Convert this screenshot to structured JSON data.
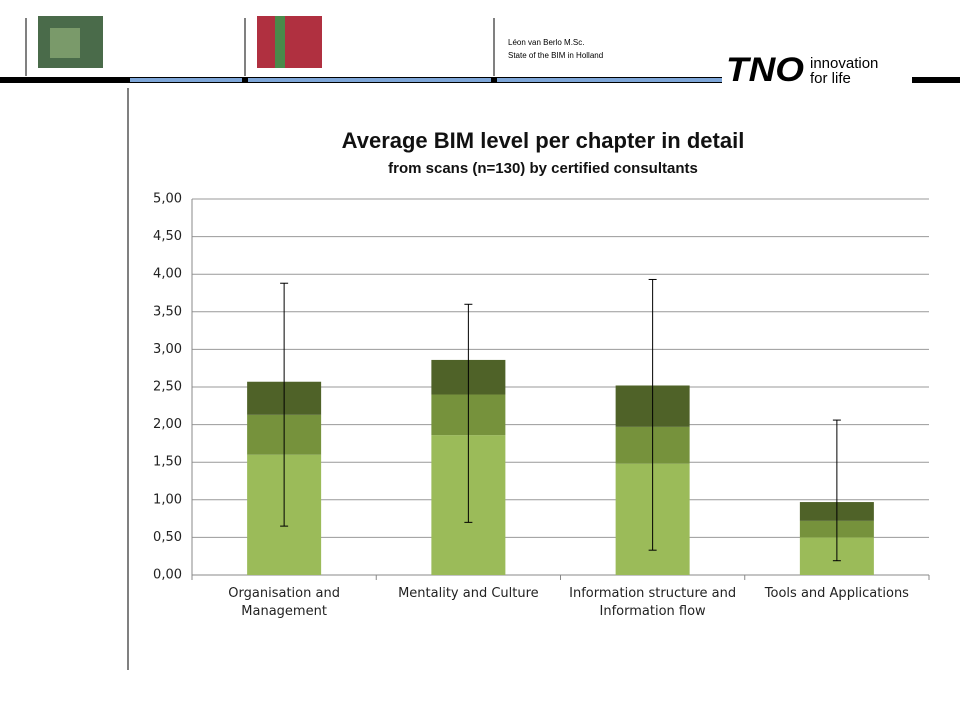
{
  "header": {
    "author": "Léon van Berlo M.Sc.",
    "subject": "State of the BIM in Holland",
    "logo": "TNO",
    "slogan_1": "innovation",
    "slogan_2": "for life"
  },
  "chart_data": {
    "type": "stacked_bar_errorbar",
    "title": "Average BIM level per chapter in detail",
    "subtitle": "from scans (n=130) by certified consultants",
    "categories": [
      "Organisation and Management",
      "Mentality and Culture",
      "Information structure and Information flow",
      "Tools and Applications"
    ],
    "series": [
      {
        "color": "#9bbb59",
        "values": [
          1.6,
          1.86,
          1.48,
          0.5
        ]
      },
      {
        "color": "#76923c",
        "values": [
          0.53,
          0.54,
          0.49,
          0.22
        ]
      },
      {
        "color": "#4f6228",
        "values": [
          0.44,
          0.46,
          0.55,
          0.25
        ]
      }
    ],
    "whisker_low": [
      0.65,
      0.7,
      0.33,
      0.19
    ],
    "whisker_high": [
      3.88,
      3.6,
      3.93,
      2.06
    ],
    "ylim": [
      0,
      5
    ],
    "yticks": [
      {
        "value": 0,
        "label": "0,00"
      },
      {
        "value": 0.5,
        "label": "0,50"
      },
      {
        "value": 1,
        "label": "1,00"
      },
      {
        "value": 1.5,
        "label": "1,50"
      },
      {
        "value": 2,
        "label": "2,00"
      },
      {
        "value": 2.5,
        "label": "2,50"
      },
      {
        "value": 3,
        "label": "3,00"
      },
      {
        "value": 3.5,
        "label": "3,50"
      },
      {
        "value": 4,
        "label": "4,00"
      },
      {
        "value": 4.5,
        "label": "4,50"
      },
      {
        "value": 5,
        "label": "5,00"
      }
    ],
    "grid": true
  }
}
